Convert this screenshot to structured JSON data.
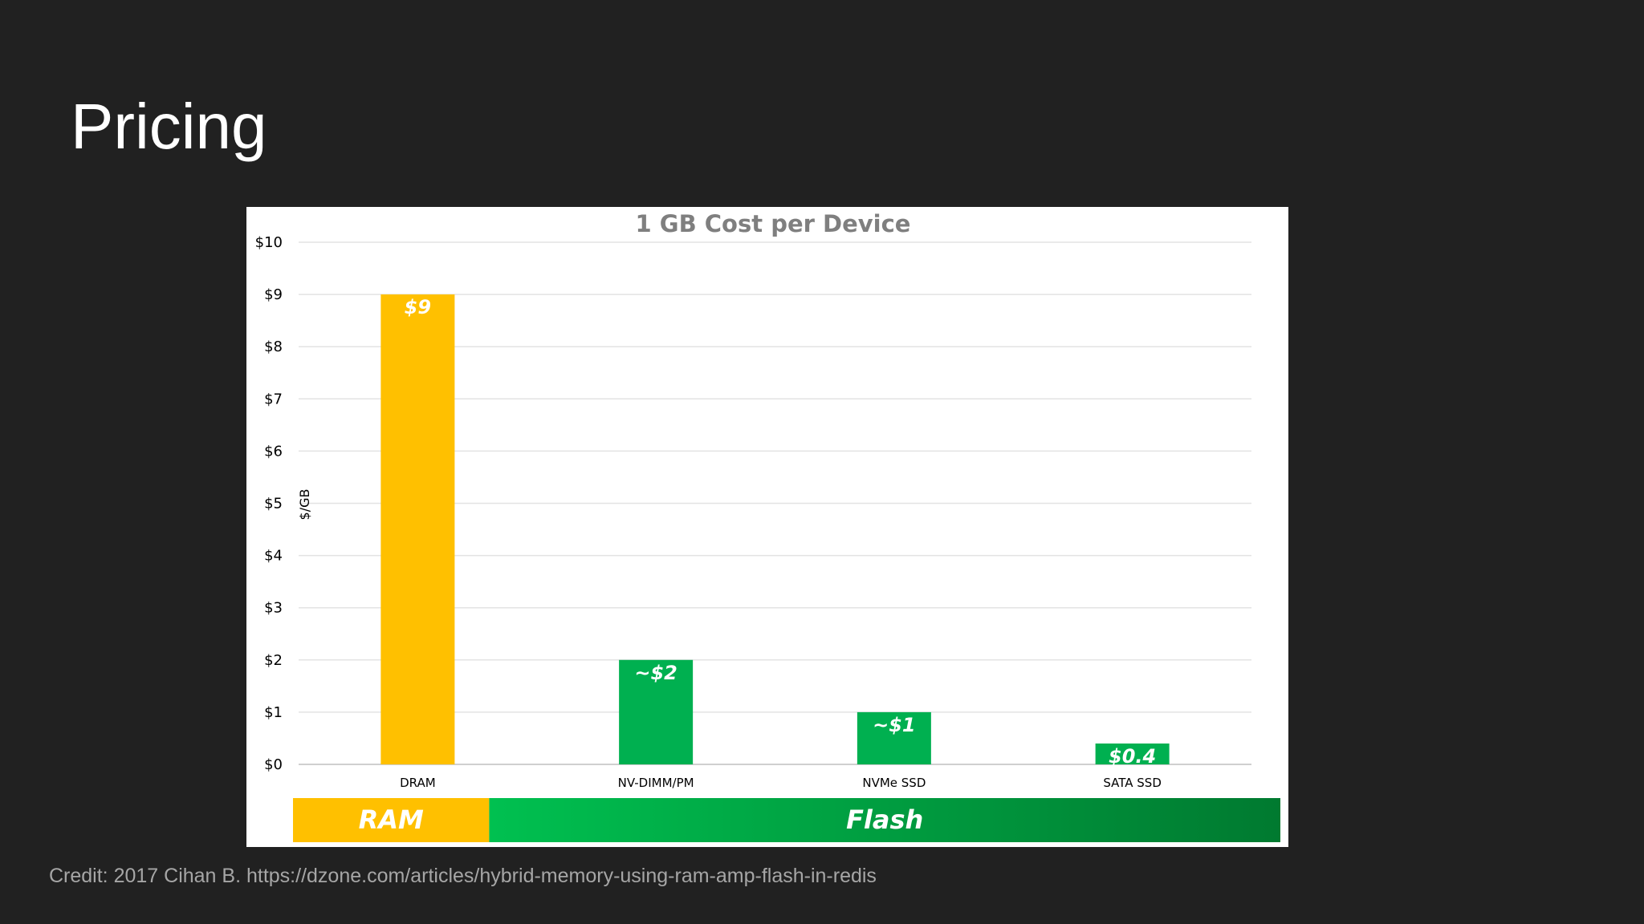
{
  "slide": {
    "title": "Pricing",
    "credit": "Credit: 2017 Cihan B. https://dzone.com/articles/hybrid-memory-using-ram-amp-flash-in-redis"
  },
  "chart_data": {
    "type": "bar",
    "title": "1 GB Cost per Device",
    "xlabel": "",
    "ylabel": "$/GB",
    "ylim": [
      0,
      10
    ],
    "y_ticks": [
      "$0",
      "$1",
      "$2",
      "$3",
      "$4",
      "$5",
      "$6",
      "$7",
      "$8",
      "$9",
      "$10"
    ],
    "grid": true,
    "categories": [
      "DRAM",
      "NV-DIMM/PM",
      "NVMe SSD",
      "SATA SSD"
    ],
    "values": [
      9,
      2,
      1,
      0.4
    ],
    "data_labels": [
      "$9",
      "~$2",
      "~$1",
      "$0.4"
    ],
    "bar_colors": [
      "#FFC000",
      "#00B050",
      "#00B050",
      "#00B050"
    ],
    "groups": [
      {
        "label": "RAM",
        "categories": [
          "DRAM"
        ],
        "color": "#FFC000"
      },
      {
        "label": "Flash",
        "categories": [
          "NV-DIMM/PM",
          "NVMe SSD",
          "SATA SSD"
        ],
        "color_start": "#00C050",
        "color_end": "#007A30"
      }
    ]
  }
}
